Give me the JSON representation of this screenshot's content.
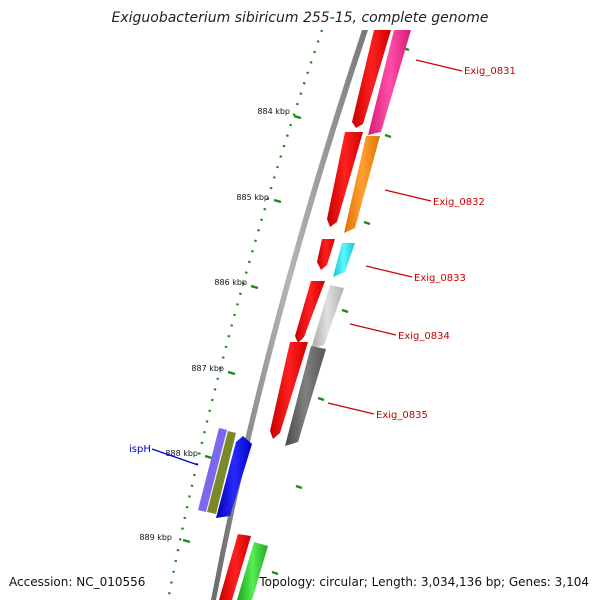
{
  "title": "Exiguobacterium sibiricum 255-15, complete genome",
  "footer": {
    "accession": "Accession: NC_010556",
    "topology": "Topology: circular; Length: 3,034,136 bp; Genes: 3,104"
  },
  "ruler": {
    "ticks": [
      "884 kbp",
      "885 kbp",
      "886 kbp",
      "887 kbp",
      "888 kbp",
      "889 kbp"
    ]
  },
  "genes": {
    "exig_0831": "Exig_0831",
    "exig_0832": "Exig_0832",
    "exig_0833": "Exig_0833",
    "exig_0834": "Exig_0834",
    "exig_0835": "Exig_0835",
    "isph": "ispH"
  },
  "colors": {
    "backbone": "#888888",
    "forward_strand": "#ff0000",
    "label_red": "#cc0000",
    "label_blue": "#0000cc",
    "tick_green": "#1a8a1a",
    "exig_0831": "#ff3399",
    "exig_0832": "#ff8c1a",
    "exig_0833": "#22e5ee",
    "exig_0834": "#c8c8c8",
    "exig_0835": "#6a6a6a",
    "isph": "#1010ee",
    "isph_side_a": "#7b68ee",
    "isph_side_b": "#7a8a2a",
    "downstream": "#33cc33"
  }
}
